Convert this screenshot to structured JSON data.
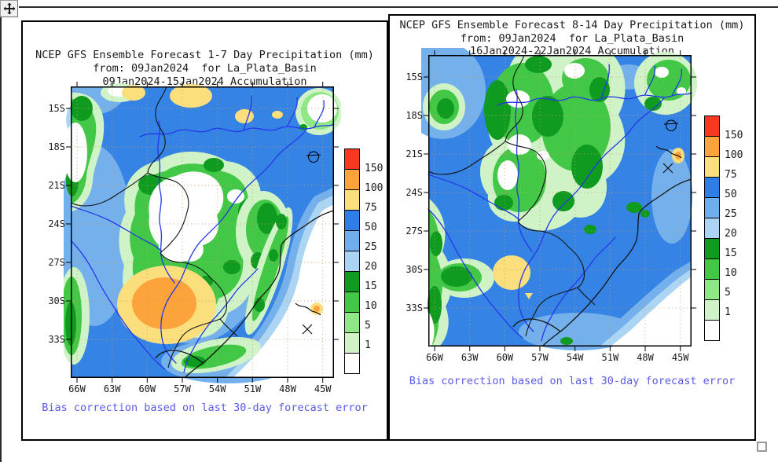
{
  "icons": {
    "move_handle": "four-direction-arrows",
    "resize_handle": "small-square-handle"
  },
  "legend": {
    "labels": [
      "150",
      "100",
      "75",
      "50",
      "25",
      "20",
      "15",
      "10",
      "5",
      "1"
    ],
    "colors": [
      "#f93822",
      "#fca33c",
      "#fbdf7c",
      "#2f7ee8",
      "#6faeec",
      "#abd4f4",
      "#0f9a20",
      "#42c846",
      "#8fe786",
      "#cff3c6",
      "#ffffff"
    ]
  },
  "map_colors": {
    "base_blue_50_75": "#3583e5",
    "light_blue_25_50": "#74b1ec",
    "pale_blue_20_25": "#acd5f4",
    "dark_green_20": "#0f9a20",
    "green_15": "#42c846",
    "light_green_10": "#8fe786",
    "pale_green_5": "#cff3c6",
    "yellow_75_100": "#fbdf7c",
    "orange_100_150": "#fca33c",
    "river_blue": "#2438e8",
    "grid_tan": "#cc9a66",
    "caption_blue": "#5a5ae6"
  },
  "panels": [
    {
      "title_lines": [
        "NCEP GFS Ensemble Forecast 1-7 Day Precipitation (mm)",
        "from: 09Jan2024  for La_Plata_Basin",
        "09Jan2024-15Jan2024 Accumulation"
      ],
      "caption": "Bias correction based on last 30-day forecast error",
      "x_ticks": [
        "66W",
        "63W",
        "60W",
        "57W",
        "54W",
        "51W",
        "48W",
        "45W"
      ],
      "y_ticks": [
        "15S",
        "18S",
        "21S",
        "24S",
        "27S",
        "30S",
        "33S"
      ]
    },
    {
      "title_lines": [
        "NCEP GFS Ensemble Forecast 8-14 Day Precipitation (mm)",
        "from: 09Jan2024  for La_Plata_Basin",
        "16Jan2024-22Jan2024 Accumulation"
      ],
      "caption": "Bias correction based on last 30-day forecast error",
      "x_ticks": [
        "66W",
        "63W",
        "60W",
        "57W",
        "54W",
        "51W",
        "48W",
        "45W"
      ],
      "y_ticks": [
        "15S",
        "18S",
        "21S",
        "24S",
        "27S",
        "30S",
        "33S"
      ]
    }
  ]
}
